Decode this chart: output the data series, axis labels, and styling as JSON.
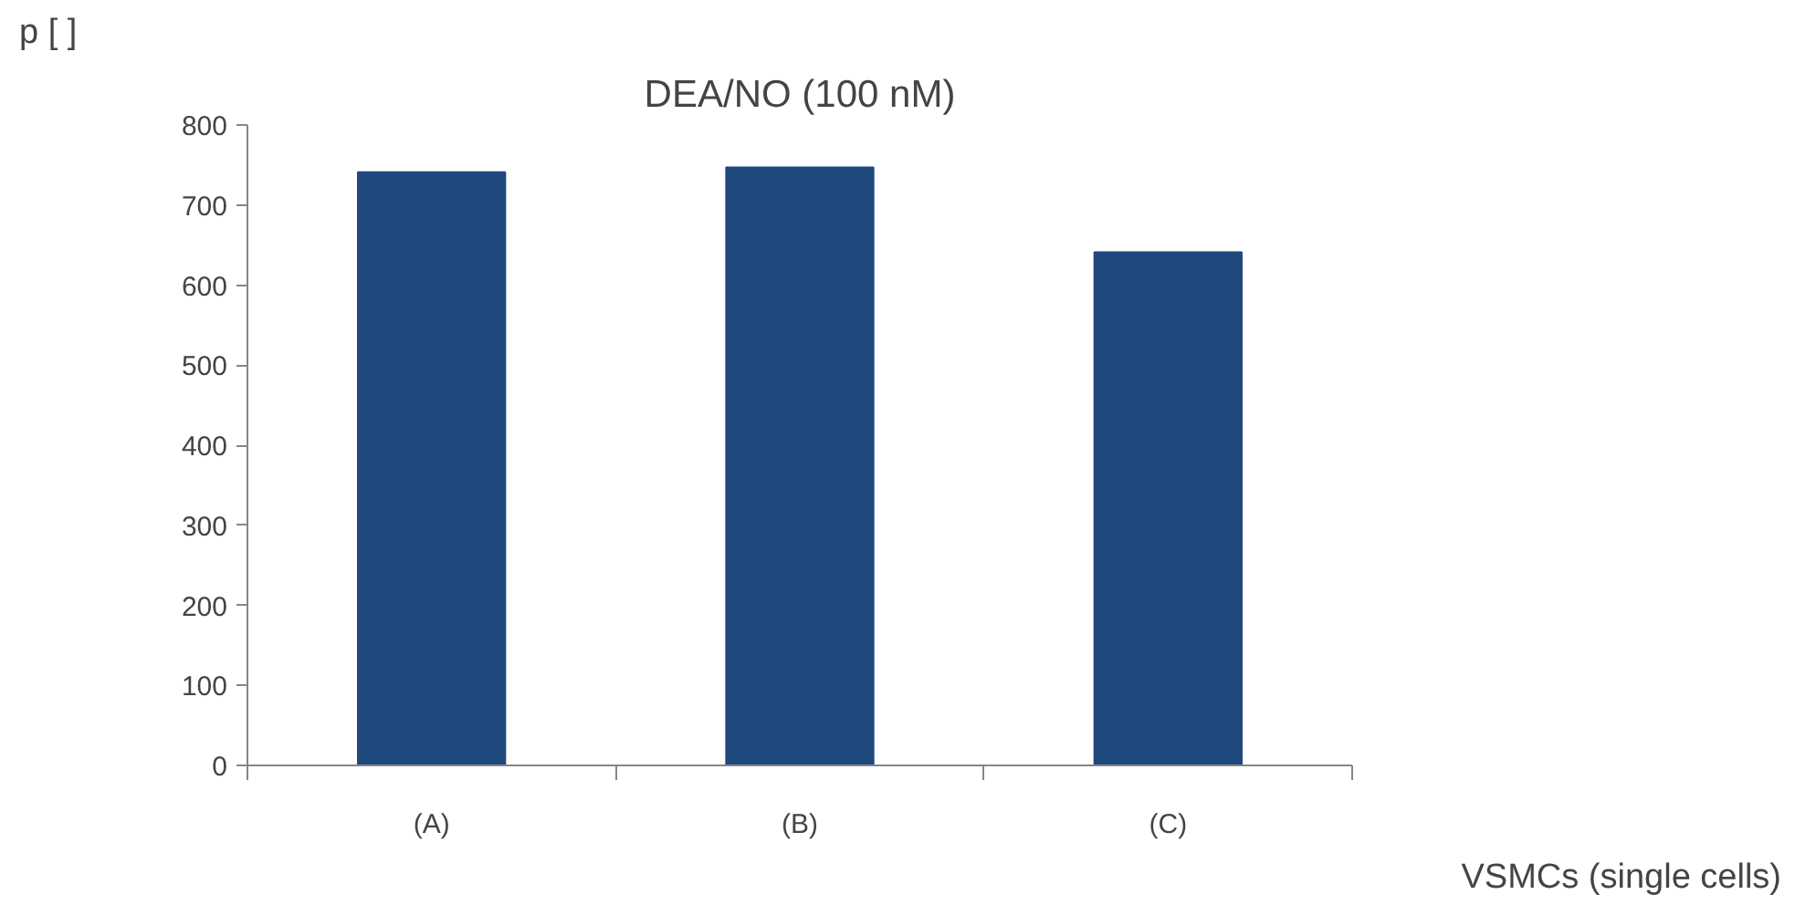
{
  "chart_data": {
    "type": "bar",
    "title": "DEA/NO (100 nM)",
    "ylabel": "p [   ]",
    "xlabel": "VSMCs (single cells)",
    "categories": [
      "(A)",
      "(B)",
      "(C)"
    ],
    "values": [
      741,
      747,
      641
    ],
    "color": "#1f497d",
    "ylim": [
      0,
      800
    ],
    "yticks": [
      0,
      100,
      200,
      300,
      400,
      500,
      600,
      700,
      800
    ],
    "grid": false
  }
}
